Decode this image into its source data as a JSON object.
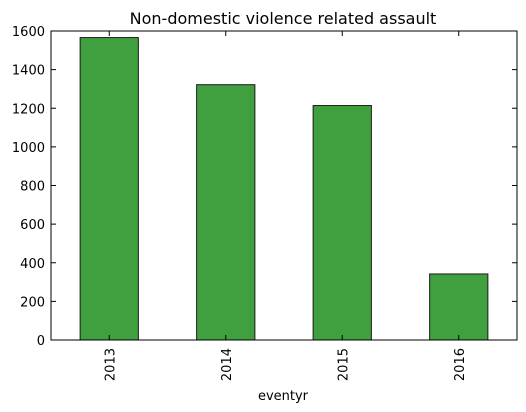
{
  "chart_data": {
    "type": "bar",
    "title": "Non-domestic violence related assault",
    "xlabel": "eventyr",
    "ylabel": "",
    "categories": [
      "2013",
      "2014",
      "2015",
      "2016"
    ],
    "series": [
      {
        "values": [
          1566,
          1322,
          1214,
          342
        ]
      }
    ],
    "ylim": [
      0,
      1600
    ],
    "yticks": [
      "0",
      "200",
      "400",
      "600",
      "800",
      "1000",
      "1200",
      "1400",
      "1600"
    ],
    "grid": false,
    "legend": "none",
    "colors": {
      "bar_fill": "#40a040",
      "bar_edge": "#1a1a1a",
      "axes": "#000000"
    }
  }
}
